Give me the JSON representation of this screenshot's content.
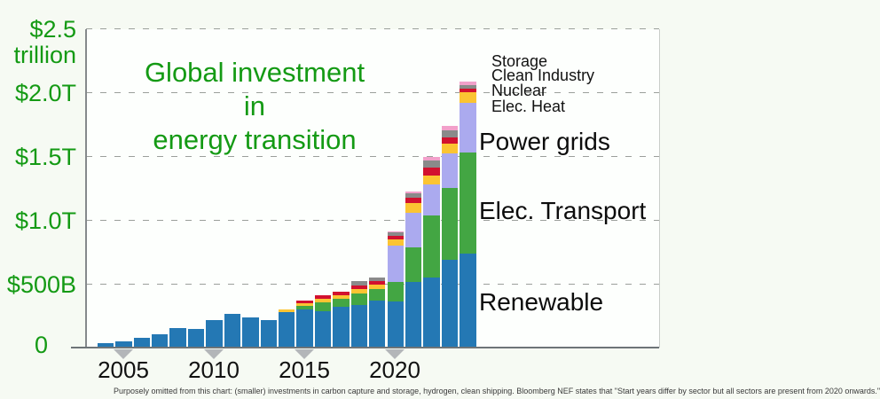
{
  "title": {
    "lines": [
      "Global investment",
      "in",
      "energy transition"
    ],
    "color": "#149a14"
  },
  "y_axis": {
    "color": "#149a14",
    "labels": [
      {
        "text": "$2.5",
        "y": 33,
        "right": 86
      },
      {
        "text": "trillion",
        "y": 62,
        "right": 86
      },
      {
        "text": "$2.0T",
        "y": 105,
        "right": 86
      },
      {
        "text": "$1.5T",
        "y": 177,
        "right": 86
      },
      {
        "text": "$1.0T",
        "y": 249,
        "right": 86
      },
      {
        "text": "$500B",
        "y": 321,
        "right": 86
      },
      {
        "text": "0",
        "y": 389,
        "right": 54
      }
    ]
  },
  "x_axis": {
    "marker_color": "#b3b6b9",
    "ticks": [
      {
        "label": "2005",
        "x": 139
      },
      {
        "label": "2010",
        "x": 241
      },
      {
        "label": "2015",
        "x": 343
      },
      {
        "label": "2020",
        "x": 445
      }
    ]
  },
  "sector_labels": {
    "small": [
      {
        "text": "Storage",
        "y": 69
      },
      {
        "text": "Clean Industry",
        "y": 85
      },
      {
        "text": "Nuclear",
        "y": 102
      },
      {
        "text": "Elec. Heat",
        "y": 120
      }
    ],
    "large": [
      {
        "text": "Power grids",
        "y": 160
      },
      {
        "text": "Elec. Transport",
        "y": 238
      },
      {
        "text": "Renewable",
        "y": 341
      }
    ]
  },
  "footnote": {
    "text": "Purposely omitted from this chart: (smaller) investments in carbon capture and storage, hydrogen, clean shipping. Bloomberg NEF states that \"Start years differ by sector but all sectors are present from 2020 onwards.\""
  },
  "chart_data": {
    "type": "bar",
    "stacked": true,
    "title": "Global investment in energy transition",
    "unit": "USD billion",
    "ylim": [
      0,
      2500
    ],
    "grid": "horizontal-dashed",
    "gridline_values": [
      500,
      1000,
      1500,
      2000,
      2500
    ],
    "legend_position": "right",
    "categories": [
      2004,
      2005,
      2006,
      2007,
      2008,
      2009,
      2010,
      2011,
      2012,
      2013,
      2014,
      2015,
      2016,
      2017,
      2018,
      2019,
      2020,
      2021,
      2022,
      2023,
      2024
    ],
    "series": [
      {
        "name": "Renewable",
        "color": "#2478b4",
        "values": [
          33,
          49,
          76,
          104,
          153,
          146,
          213,
          264,
          234,
          213,
          278,
          302,
          286,
          322,
          333,
          370,
          361,
          515,
          548,
          690,
          738
        ]
      },
      {
        "name": "Elec. Transport",
        "color": "#43a643",
        "values": [
          0,
          0,
          0,
          0,
          0,
          0,
          0,
          0,
          0,
          0,
          0,
          26,
          67,
          63,
          88,
          88,
          151,
          273,
          487,
          558,
          788
        ]
      },
      {
        "name": "Power grids",
        "color": "#abaaef",
        "values": [
          0,
          0,
          0,
          0,
          0,
          0,
          0,
          0,
          0,
          0,
          0,
          0,
          0,
          0,
          0,
          0,
          289,
          271,
          244,
          275,
          394
        ]
      },
      {
        "name": "Elec. Heat",
        "color": "#fbc432",
        "values": [
          0,
          0,
          0,
          0,
          0,
          0,
          0,
          0,
          0,
          0,
          21,
          21,
          26,
          24,
          40,
          38,
          47,
          70,
          70,
          73,
          77
        ]
      },
      {
        "name": "Nuclear",
        "color": "#d2112f",
        "values": [
          0,
          0,
          0,
          0,
          0,
          0,
          0,
          0,
          0,
          0,
          0,
          21,
          28,
          28,
          26,
          26,
          30,
          42,
          58,
          49,
          31
        ]
      },
      {
        "name": "Clean Industry",
        "color": "#8a8a8a",
        "values": [
          0,
          0,
          0,
          0,
          0,
          0,
          0,
          0,
          0,
          0,
          0,
          0,
          0,
          0,
          31,
          26,
          28,
          36,
          57,
          59,
          28
        ]
      },
      {
        "name": "Storage",
        "color": "#f2a0ca",
        "values": [
          0,
          0,
          0,
          0,
          0,
          0,
          0,
          0,
          0,
          0,
          0,
          0,
          0,
          0,
          0,
          0,
          5,
          17,
          26,
          29,
          24
        ]
      }
    ],
    "totals": [
      33,
      49,
      76,
      104,
      153,
      146,
      213,
      264,
      234,
      213,
      299,
      370,
      407,
      437,
      518,
      548,
      911,
      1224,
      1490,
      1733,
      2080
    ]
  }
}
